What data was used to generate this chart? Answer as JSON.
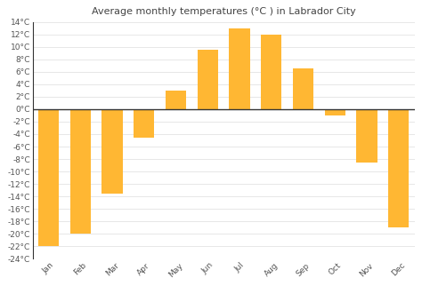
{
  "title": "Average monthly temperatures (°C ) in Labrador City",
  "months": [
    "Jan",
    "Feb",
    "Mar",
    "Apr",
    "May",
    "Jun",
    "Jul",
    "Aug",
    "Sep",
    "Oct",
    "Nov",
    "Dec"
  ],
  "values": [
    -22,
    -20,
    -13.5,
    -4.5,
    3,
    9.5,
    13,
    12,
    6.5,
    -1,
    -8.5,
    -19
  ],
  "bar_color_top": "#FFB800",
  "bar_color_bottom": "#FF8C00",
  "ylim": [
    -24,
    14
  ],
  "yticks": [
    -24,
    -22,
    -20,
    -18,
    -16,
    -14,
    -12,
    -10,
    -8,
    -6,
    -4,
    -2,
    0,
    2,
    4,
    6,
    8,
    10,
    12,
    14
  ],
  "background_color": "#ffffff",
  "plot_bg_color": "#ffffff",
  "grid_color": "#dddddd",
  "title_fontsize": 8,
  "tick_fontsize": 6.5,
  "zero_line_color": "#333333",
  "spine_color": "#333333"
}
